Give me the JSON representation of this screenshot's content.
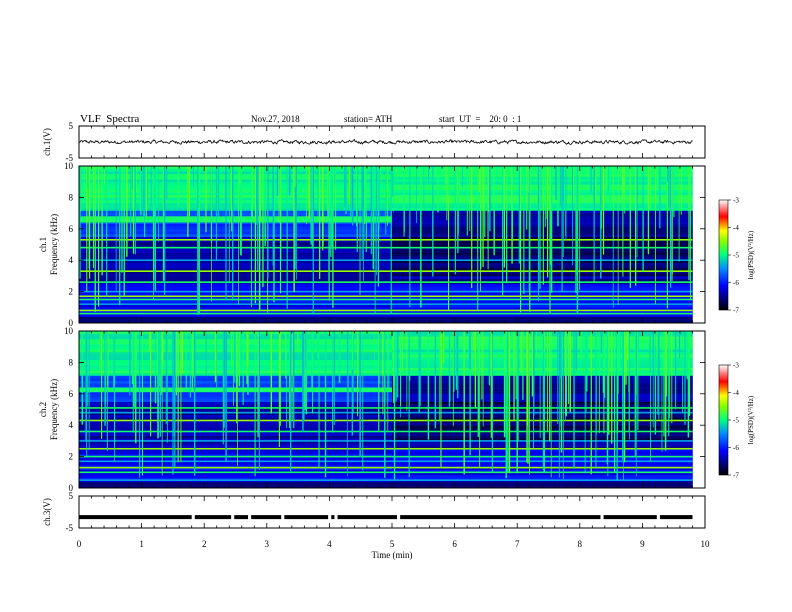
{
  "header": {
    "title": "VLF  Spectra",
    "date": "Nov.27, 2018",
    "station": "station= ATH",
    "start": "start  UT  =    20: 0  : 1"
  },
  "chart_data": [
    {
      "type": "line",
      "panel": "ch1-waveform",
      "ylabel": "ch.1(V)",
      "xlim": [
        0,
        10
      ],
      "ylim": [
        -5,
        5
      ],
      "yticks": [
        -5,
        5
      ],
      "color": "#000000",
      "description_values": "noisy trace centered near 0 V, amplitude about ±0.6 V, data from 0 to 9.8 min"
    },
    {
      "type": "heatmap",
      "panel": "ch1-spectrogram",
      "ylabel": "ch.1",
      "ylabel2": "Frequency  (kHz)",
      "xlim": [
        0,
        9.8
      ],
      "ylim": [
        0,
        10
      ],
      "yticks": [
        0,
        2,
        4,
        6,
        8,
        10
      ],
      "colorbar": {
        "label": "log(PSD)(V²/Hz)",
        "range": [
          -7,
          -3
        ],
        "ticks": [
          "-3",
          "-4",
          "-5",
          "-6",
          "-7"
        ]
      },
      "features": {
        "hiss_band_khz": [
          6.4,
          6.8
        ],
        "hiss_band_until_min": 5.0,
        "narrowband_lines_khz": [
          0.3,
          0.6,
          0.8,
          1.2,
          1.5,
          1.7,
          2.0,
          2.6,
          3.3,
          4.0,
          4.8,
          5.3
        ]
      }
    },
    {
      "type": "heatmap",
      "panel": "ch2-spectrogram",
      "ylabel": "ch.2",
      "ylabel2": "Frequency  (kHz)",
      "xlim": [
        0,
        9.8
      ],
      "ylim": [
        0,
        10
      ],
      "yticks": [
        0,
        2,
        4,
        6,
        8,
        10
      ],
      "colorbar": {
        "label": "log(PSD)(V²/Hz)",
        "range": [
          -7,
          -3
        ],
        "ticks": [
          "-3",
          "-4",
          "-5",
          "-6",
          "-7"
        ]
      },
      "features": {
        "hiss_band_khz": [
          6.1,
          6.4
        ],
        "hiss_band_until_min": 5.0,
        "narrowband_lines_khz": [
          0.5,
          1.0,
          1.3,
          1.7,
          2.0,
          2.5,
          3.0,
          3.6,
          4.3,
          4.8,
          5.1
        ]
      }
    },
    {
      "type": "line",
      "panel": "ch3-waveform",
      "ylabel": "ch.3(V)",
      "xlabel": "Time  (min)",
      "xlim": [
        0,
        10
      ],
      "xticks": [
        0,
        1,
        2,
        3,
        4,
        5,
        6,
        7,
        8,
        9,
        10
      ],
      "ylim": [
        -5,
        5
      ],
      "yticks": [
        -5,
        5
      ],
      "value_v": -1.6,
      "gaps_min": [
        1.82,
        2.45,
        2.72,
        3.25,
        4.0,
        4.1,
        5.1,
        8.35,
        9.25
      ]
    }
  ]
}
